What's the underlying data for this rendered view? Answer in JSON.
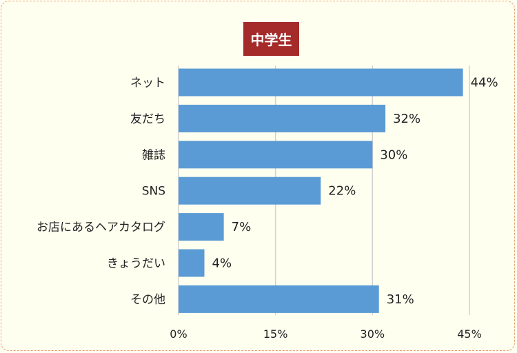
{
  "chart_data": {
    "type": "bar",
    "orientation": "horizontal",
    "title": "中学生",
    "categories": [
      "ネット",
      "友だち",
      "雑誌",
      "SNS",
      "お店にあるヘアカタログ",
      "きょうだい",
      "その他"
    ],
    "values": [
      44,
      32,
      30,
      22,
      7,
      4,
      31
    ],
    "value_labels": [
      "44%",
      "32%",
      "30%",
      "22%",
      "7%",
      "4%",
      "31%"
    ],
    "xlim": [
      0,
      45
    ],
    "xticks": [
      0,
      15,
      30,
      45
    ],
    "xtick_labels": [
      "0%",
      "15%",
      "30%",
      "45%"
    ],
    "grid": true,
    "colors": {
      "bar": "#5b9bd5",
      "title_bg": "#a52a2a",
      "title_text": "#ffffff",
      "grid": "#d0d0d0"
    }
  }
}
